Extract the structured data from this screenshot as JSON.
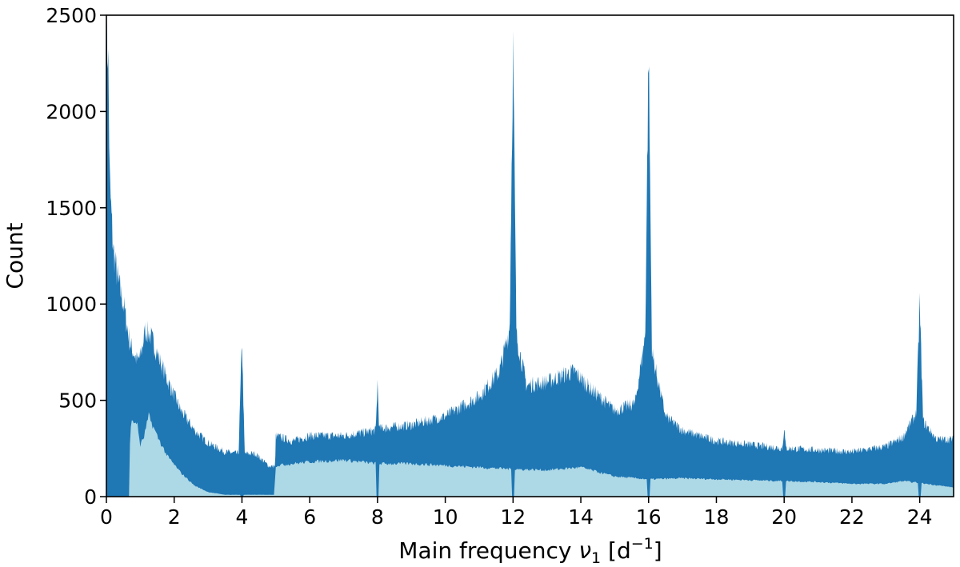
{
  "chart_data": {
    "type": "area",
    "title": "",
    "xlabel": {
      "text": "Main frequency ",
      "symbol": "ν",
      "subscript": "1",
      "unit_open": " [d",
      "superscript": "−1",
      "unit_close": "]"
    },
    "ylabel": "Count",
    "xlim": [
      0,
      25
    ],
    "ylim": [
      0,
      2500
    ],
    "x_ticks": [
      "0",
      "2",
      "4",
      "6",
      "8",
      "10",
      "12",
      "14",
      "16",
      "18",
      "20",
      "22",
      "24"
    ],
    "y_ticks": [
      "0",
      "500",
      "1000",
      "1500",
      "2000",
      "2500"
    ],
    "grid": false,
    "legend": "none",
    "series": [
      {
        "fill_color": "#1f77b4",
        "style": "noisy-envelope",
        "upper_envelope": [
          [
            0.0,
            2500
          ],
          [
            0.05,
            2500
          ],
          [
            0.1,
            1750
          ],
          [
            0.2,
            1380
          ],
          [
            0.35,
            1200
          ],
          [
            0.5,
            1080
          ],
          [
            0.7,
            850
          ],
          [
            0.9,
            760
          ],
          [
            1.0,
            780
          ],
          [
            1.15,
            930
          ],
          [
            1.3,
            900
          ],
          [
            1.5,
            800
          ],
          [
            1.8,
            650
          ],
          [
            2.2,
            480
          ],
          [
            2.6,
            370
          ],
          [
            3.0,
            300
          ],
          [
            3.5,
            250
          ],
          [
            3.9,
            240
          ],
          [
            4.0,
            870
          ],
          [
            4.08,
            240
          ],
          [
            4.4,
            240
          ],
          [
            4.8,
            170
          ],
          [
            4.98,
            170
          ],
          [
            5.0,
            340
          ],
          [
            5.5,
            310
          ],
          [
            6.0,
            340
          ],
          [
            7.0,
            340
          ],
          [
            7.95,
            370
          ],
          [
            8.0,
            640
          ],
          [
            8.05,
            380
          ],
          [
            9.0,
            400
          ],
          [
            10.0,
            450
          ],
          [
            11.0,
            560
          ],
          [
            11.6,
            700
          ],
          [
            11.9,
            940
          ],
          [
            12.0,
            2500
          ],
          [
            12.1,
            900
          ],
          [
            12.4,
            620
          ],
          [
            13.0,
            640
          ],
          [
            13.5,
            680
          ],
          [
            13.8,
            700
          ],
          [
            14.3,
            600
          ],
          [
            15.0,
            480
          ],
          [
            15.6,
            520
          ],
          [
            15.9,
            900
          ],
          [
            16.0,
            2500
          ],
          [
            16.1,
            800
          ],
          [
            16.5,
            450
          ],
          [
            17.0,
            370
          ],
          [
            18.0,
            310
          ],
          [
            19.0,
            290
          ],
          [
            19.95,
            270
          ],
          [
            20.0,
            390
          ],
          [
            20.05,
            270
          ],
          [
            21.0,
            260
          ],
          [
            22.0,
            250
          ],
          [
            23.0,
            280
          ],
          [
            23.5,
            330
          ],
          [
            23.9,
            470
          ],
          [
            24.0,
            1080
          ],
          [
            24.1,
            420
          ],
          [
            24.5,
            320
          ],
          [
            25.0,
            320
          ]
        ]
      },
      {
        "fill_color": "#add8e6",
        "style": "lower-band",
        "upper_envelope": [
          [
            0.0,
            0
          ],
          [
            0.68,
            0
          ],
          [
            0.7,
            400
          ],
          [
            0.9,
            410
          ],
          [
            1.0,
            280
          ],
          [
            1.1,
            320
          ],
          [
            1.25,
            440
          ],
          [
            1.5,
            330
          ],
          [
            1.8,
            220
          ],
          [
            2.2,
            130
          ],
          [
            2.6,
            60
          ],
          [
            3.0,
            25
          ],
          [
            3.5,
            10
          ],
          [
            4.5,
            10
          ],
          [
            4.95,
            10
          ],
          [
            5.0,
            170
          ],
          [
            6.0,
            190
          ],
          [
            7.0,
            200
          ],
          [
            8.0,
            180
          ],
          [
            9.0,
            180
          ],
          [
            10.0,
            170
          ],
          [
            11.0,
            160
          ],
          [
            12.0,
            150
          ],
          [
            13.0,
            145
          ],
          [
            14.0,
            160
          ],
          [
            15.0,
            110
          ],
          [
            16.0,
            95
          ],
          [
            17.0,
            100
          ],
          [
            18.0,
            95
          ],
          [
            19.0,
            90
          ],
          [
            20.0,
            85
          ],
          [
            21.0,
            80
          ],
          [
            22.0,
            70
          ],
          [
            23.0,
            70
          ],
          [
            23.5,
            85
          ],
          [
            24.0,
            75
          ],
          [
            25.0,
            50
          ]
        ],
        "dips_to_zero_at": [
          4.0,
          8.0,
          12.0,
          16.0,
          20.0,
          24.0
        ]
      }
    ]
  }
}
